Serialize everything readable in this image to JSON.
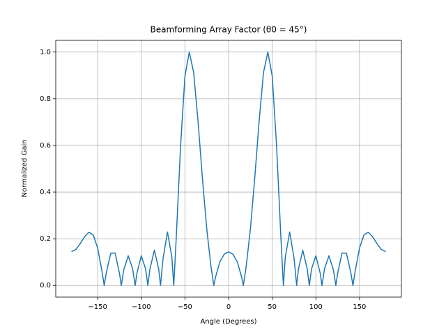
{
  "chart_data": {
    "type": "line",
    "title": "Beamforming Array Factor (θ0 = 45°)",
    "x_label": "Angle (Degrees)",
    "y_label": "Normalized Gain",
    "color": "#1f77b4",
    "grid": true,
    "x": [
      -180,
      -175,
      -170,
      -165,
      -160,
      -155,
      -150,
      -145,
      -142.5,
      -140,
      -135,
      -130,
      -125,
      -122.9,
      -120,
      -115,
      -110,
      -107,
      -105,
      -100,
      -95,
      -92.5,
      -90,
      -85,
      -80,
      -78,
      -75,
      -70,
      -65,
      -62.8,
      -60,
      -55,
      -50,
      -45,
      -40,
      -35,
      -30,
      -25,
      -20,
      -16.9,
      -15,
      -10,
      -5,
      0,
      5,
      10,
      15,
      16.9,
      20,
      25,
      30,
      35,
      40,
      45,
      50,
      55,
      60,
      62.8,
      65,
      70,
      75,
      78,
      80,
      85,
      90,
      92.5,
      95,
      100,
      105,
      107,
      110,
      115,
      120,
      122.9,
      125,
      130,
      135,
      140,
      142.5,
      145,
      150,
      155,
      160,
      165,
      170,
      175,
      180
    ],
    "values": [
      0.145,
      0.154,
      0.179,
      0.209,
      0.228,
      0.216,
      0.16,
      0.06,
      0,
      0.056,
      0.138,
      0.139,
      0.052,
      0,
      0.068,
      0.127,
      0.073,
      0,
      0.052,
      0.127,
      0.07,
      0,
      0.072,
      0.151,
      0.069,
      0,
      0.117,
      0.229,
      0.121,
      0,
      0.201,
      0.597,
      0.897,
      1,
      0.912,
      0.704,
      0.461,
      0.242,
      0.076,
      0,
      0.035,
      0.101,
      0.134,
      0.144,
      0.134,
      0.101,
      0.035,
      0,
      0.076,
      0.242,
      0.461,
      0.704,
      0.912,
      1,
      0.897,
      0.597,
      0.201,
      0,
      0.121,
      0.229,
      0.117,
      0,
      0.069,
      0.151,
      0.072,
      0,
      0.07,
      0.127,
      0.052,
      0,
      0.073,
      0.127,
      0.068,
      0,
      0.052,
      0.139,
      0.138,
      0.056,
      0,
      0.06,
      0.16,
      0.216,
      0.228,
      0.209,
      0.179,
      0.154,
      0.145
    ],
    "xlim": [
      -198,
      198
    ],
    "ylim": [
      -0.05,
      1.05
    ],
    "xticks": [
      {
        "value": -150,
        "label": "−150"
      },
      {
        "value": -100,
        "label": "−100"
      },
      {
        "value": -50,
        "label": "−50"
      },
      0,
      50,
      100,
      150
    ],
    "yticks": [
      {
        "value": 0,
        "label": "0.0"
      },
      0.2,
      0.4,
      0.6,
      0.8,
      {
        "value": 1,
        "label": "1.0"
      }
    ]
  }
}
